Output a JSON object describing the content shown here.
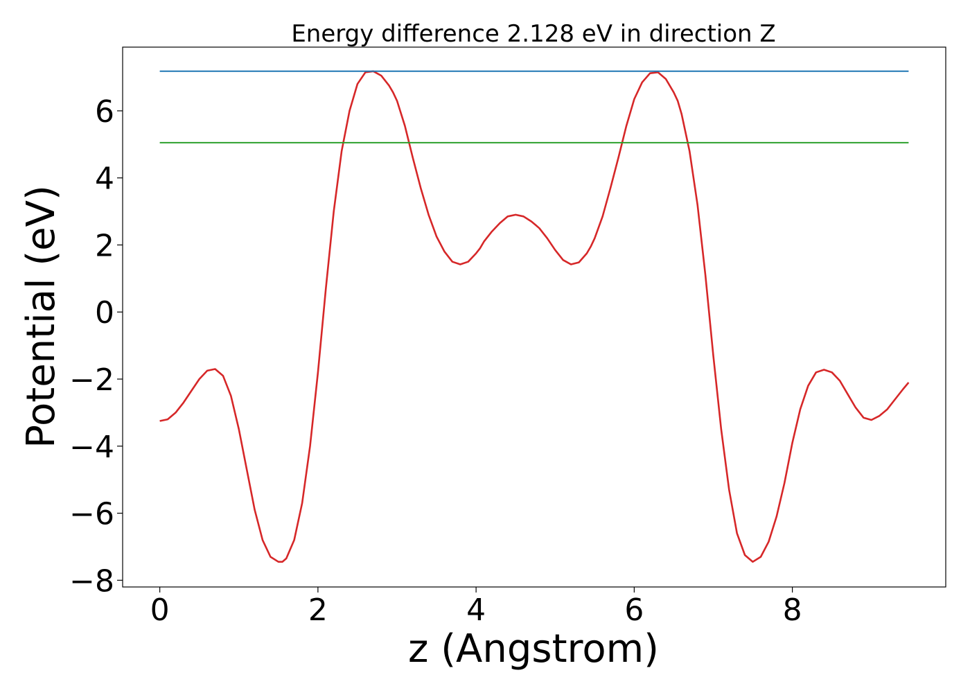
{
  "chart_data": {
    "type": "line",
    "title": "Energy difference 2.128 eV in direction Z",
    "xlabel": "z (Angstrom)",
    "ylabel": "Potential (eV)",
    "xlim": [
      -0.47,
      9.94
    ],
    "ylim": [
      -8.2,
      7.9
    ],
    "xticks": [
      0,
      2,
      4,
      6,
      8
    ],
    "xtick_labels": [
      "0",
      "2",
      "4",
      "6",
      "8"
    ],
    "yticks": [
      -8,
      -6,
      -4,
      -2,
      0,
      2,
      4,
      6
    ],
    "ytick_labels": [
      "−8",
      "−6",
      "−4",
      "−2",
      "0",
      "2",
      "4",
      "6"
    ],
    "grid": false,
    "legend": "none",
    "series": [
      {
        "color": "#d62728",
        "x": [
          0.0,
          0.1,
          0.2,
          0.3,
          0.4,
          0.5,
          0.6,
          0.7,
          0.8,
          0.9,
          1.0,
          1.1,
          1.2,
          1.3,
          1.4,
          1.5,
          1.55,
          1.6,
          1.7,
          1.8,
          1.9,
          2.0,
          2.1,
          2.2,
          2.3,
          2.4,
          2.5,
          2.6,
          2.7,
          2.8,
          2.9,
          2.95,
          3.0,
          3.1,
          3.2,
          3.3,
          3.4,
          3.5,
          3.6,
          3.7,
          3.8,
          3.9,
          4.0,
          4.05,
          4.1,
          4.2,
          4.3,
          4.4,
          4.5,
          4.6,
          4.7,
          4.75,
          4.8,
          4.9,
          5.0,
          5.1,
          5.2,
          5.3,
          5.4,
          5.45,
          5.5,
          5.6,
          5.7,
          5.8,
          5.9,
          6.0,
          6.1,
          6.2,
          6.3,
          6.4,
          6.5,
          6.55,
          6.6,
          6.7,
          6.8,
          6.9,
          7.0,
          7.1,
          7.2,
          7.3,
          7.4,
          7.5,
          7.6,
          7.7,
          7.8,
          7.9,
          7.95,
          8.0,
          8.1,
          8.2,
          8.3,
          8.4,
          8.5,
          8.6,
          8.7,
          8.8,
          8.9,
          9.0,
          9.1,
          9.2,
          9.3,
          9.4,
          9.47
        ],
        "y": [
          -3.25,
          -3.2,
          -3.0,
          -2.7,
          -2.35,
          -2.0,
          -1.75,
          -1.7,
          -1.9,
          -2.5,
          -3.5,
          -4.7,
          -5.9,
          -6.8,
          -7.3,
          -7.45,
          -7.45,
          -7.35,
          -6.8,
          -5.7,
          -4.0,
          -1.8,
          0.7,
          3.0,
          4.8,
          6.0,
          6.8,
          7.15,
          7.18,
          7.05,
          6.75,
          6.55,
          6.3,
          5.55,
          4.6,
          3.7,
          2.9,
          2.25,
          1.8,
          1.5,
          1.42,
          1.5,
          1.75,
          1.9,
          2.1,
          2.4,
          2.65,
          2.85,
          2.9,
          2.85,
          2.7,
          2.6,
          2.5,
          2.2,
          1.85,
          1.55,
          1.42,
          1.48,
          1.75,
          1.95,
          2.2,
          2.85,
          3.7,
          4.6,
          5.55,
          6.35,
          6.85,
          7.12,
          7.15,
          6.95,
          6.55,
          6.3,
          5.9,
          4.8,
          3.2,
          1.1,
          -1.3,
          -3.5,
          -5.3,
          -6.6,
          -7.25,
          -7.45,
          -7.3,
          -6.85,
          -6.1,
          -5.1,
          -4.5,
          -3.9,
          -2.9,
          -2.2,
          -1.8,
          -1.72,
          -1.8,
          -2.05,
          -2.45,
          -2.85,
          -3.15,
          -3.22,
          -3.1,
          -2.9,
          -2.6,
          -2.3,
          -2.1
        ]
      },
      {
        "color": "#1f77b4",
        "x": [
          0.0,
          9.47
        ],
        "y": [
          7.18,
          7.18
        ]
      },
      {
        "color": "#2ca02c",
        "x": [
          0.0,
          9.47
        ],
        "y": [
          5.05,
          5.05
        ]
      }
    ]
  }
}
